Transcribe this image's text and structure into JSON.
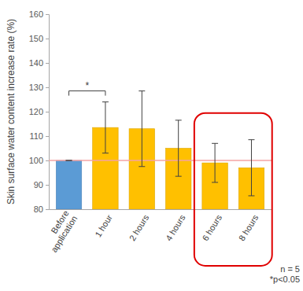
{
  "chart_data": {
    "type": "bar",
    "y_label": "Skin surface water content increase rate (%)",
    "categories": [
      "Before application",
      "1 hour",
      "2 hours",
      "4 hours",
      "6 hours",
      "8 hours"
    ],
    "values": [
      100,
      113.5,
      113,
      105,
      99,
      97
    ],
    "errors": [
      0,
      10.5,
      15.5,
      11.5,
      8,
      11.5
    ],
    "colors": [
      "#5b9bd5",
      "#ffc000",
      "#ffc000",
      "#ffc000",
      "#ffc000",
      "#ffc000"
    ],
    "ylim": [
      80,
      160
    ],
    "yticks": [
      80,
      90,
      100,
      110,
      120,
      130,
      140,
      150,
      160
    ],
    "grid": false,
    "reference_line": 100,
    "significance": [
      {
        "between": [
          "Before application",
          "1 hour"
        ],
        "label": "*"
      }
    ],
    "highlight": [
      "6 hours",
      "8 hours"
    ],
    "annotations": [
      "n = 5",
      "*p<0.05"
    ]
  }
}
